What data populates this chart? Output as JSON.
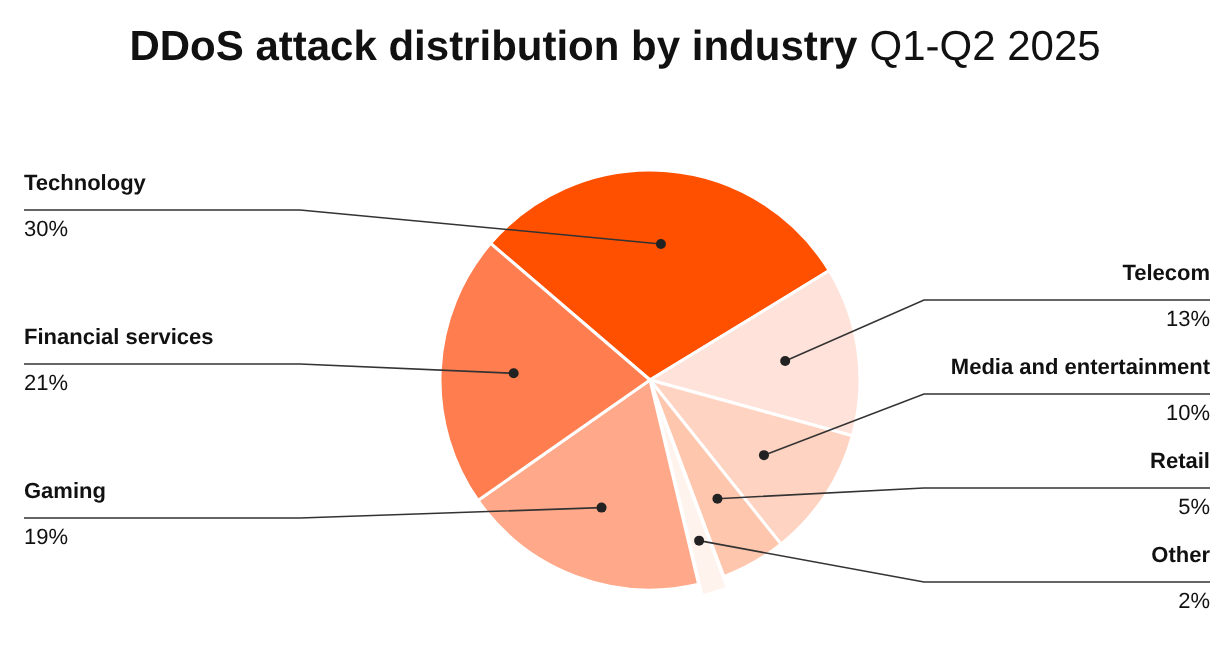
{
  "chart_data": {
    "type": "pie",
    "title": "DDoS attack distribution by industry",
    "subtitle": "Q1-Q2 2025",
    "categories": [
      "Technology",
      "Telecom",
      "Media and entertainment",
      "Retail",
      "Other",
      "Gaming",
      "Financial services"
    ],
    "values": [
      30,
      13,
      10,
      5,
      2,
      19,
      21
    ],
    "value_labels": [
      "30%",
      "13%",
      "10%",
      "5%",
      "2%",
      "19%",
      "21%"
    ],
    "colors": [
      "#ff5000",
      "#ffe3da",
      "#ffd3c2",
      "#ffc6ae",
      "#fff3ee",
      "#ffa98a",
      "#ff7d4f"
    ]
  }
}
